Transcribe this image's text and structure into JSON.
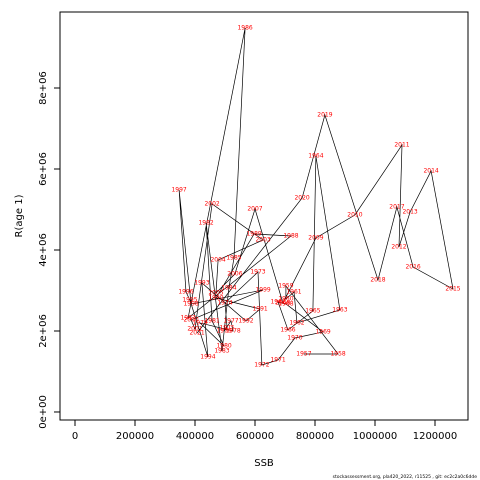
{
  "chart_data": {
    "type": "line",
    "xlabel": "SSB",
    "ylabel": "R(age 1)",
    "footnote": "stockassessment.org, pla420_2022, r11525 , git: ec2c2a0c6dde",
    "labels": [
      "1957",
      "1958",
      "1959",
      "1960",
      "1961",
      "1962",
      "1963",
      "1964",
      "1965",
      "1966",
      "1967",
      "1968",
      "1969",
      "1970",
      "1971",
      "1972",
      "1973",
      "1974",
      "1975",
      "1976",
      "1977",
      "1978",
      "1979",
      "1980",
      "1981",
      "1982",
      "1983",
      "1984",
      "1985",
      "1986",
      "1987",
      "1988",
      "1989",
      "1990",
      "1991",
      "1992",
      "1993",
      "1994",
      "1995",
      "1996",
      "1997",
      "1998",
      "1999",
      "2000",
      "2001",
      "2002",
      "2003",
      "2004",
      "2005",
      "2006",
      "2007",
      "2008",
      "2009",
      "2010",
      "2011",
      "2012",
      "2013",
      "2014",
      "2015",
      "2016",
      "2017",
      "2018",
      "2019",
      "2020",
      "2021"
    ],
    "x": [
      763000,
      877000,
      703000,
      703000,
      730000,
      740000,
      883000,
      803000,
      793000,
      710000,
      677000,
      703000,
      827000,
      733000,
      677000,
      623000,
      610000,
      500000,
      507000,
      497000,
      520000,
      527000,
      417000,
      497000,
      457000,
      437000,
      490000,
      513000,
      530000,
      567000,
      377000,
      720000,
      597000,
      470000,
      617000,
      570000,
      423000,
      443000,
      383000,
      370000,
      347000,
      387000,
      627000,
      387000,
      400000,
      457000,
      627000,
      477000,
      470000,
      533000,
      600000,
      693000,
      803000,
      933000,
      1090000,
      1080000,
      1117000,
      1187000,
      1260000,
      1127000,
      1073000,
      1010000,
      833000,
      757000,
      407000
    ],
    "values": [
      1432000,
      1432000,
      3111000,
      2790000,
      2963000,
      2198000,
      2519000,
      6321000,
      2494000,
      2025000,
      2716000,
      2667000,
      1975000,
      1827000,
      1284000,
      1160000,
      3457000,
      2691000,
      2074000,
      2000000,
      2247000,
      2000000,
      2198000,
      1630000,
      2247000,
      4667000,
      1506000,
      3062000,
      3802000,
      9481000,
      2321000,
      4346000,
      4395000,
      2815000,
      2543000,
      2247000,
      3185000,
      1358000,
      2765000,
      2963000,
      5481000,
      2667000,
      3012000,
      2272000,
      2049000,
      5136000,
      4247000,
      3753000,
      2938000,
      3407000,
      5012000,
      2691000,
      4296000,
      4864000,
      6593000,
      4074000,
      4938000,
      5951000,
      3037000,
      3580000,
      5062000,
      3259000,
      7333000,
      5284000,
      1951000
    ],
    "line_color": "#000000",
    "label_color": "#ff0000",
    "xlim": [
      -50000,
      1310000
    ],
    "ylim": [
      -198000,
      9877000
    ],
    "xticks": [
      0,
      200000,
      400000,
      600000,
      800000,
      1000000,
      1200000
    ],
    "yticks": [
      {
        "value": 0,
        "label": "0e+00"
      },
      {
        "value": 2000000,
        "label": "2e+06"
      },
      {
        "value": 4000000,
        "label": "4e+06"
      },
      {
        "value": 6000000,
        "label": "6e+06"
      },
      {
        "value": 8000000,
        "label": "8e+06"
      }
    ]
  }
}
